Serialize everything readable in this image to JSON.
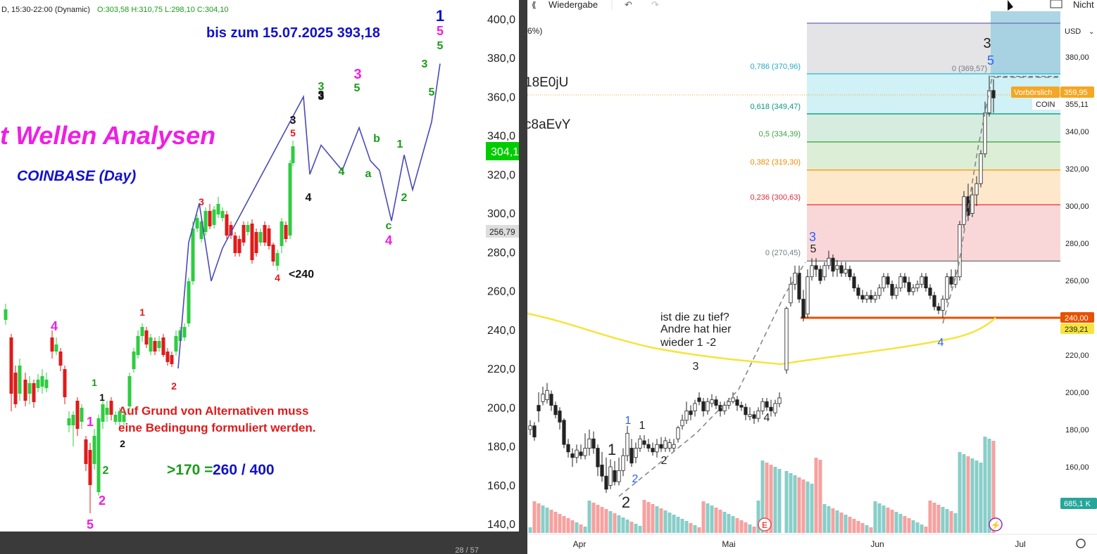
{
  "left": {
    "header": "D, 15:30-22:00 (Dynamic)",
    "ohlc": "O:303,58 H:310,75 L:298,10 C:304,10",
    "title": "t Wellen Analysen",
    "subtitle": "COINBASE (Day)",
    "target": "bis zum 15.07.2025 393,18",
    "note_line1": "Auf Grund von Alternativen muss",
    "note_line2": "eine Bedingung formuliert werden.",
    "cond_a": ">170 =",
    "cond_b": "260 / 400",
    "lt240": "<240",
    "y_ticks": [
      "400,0",
      "380,0",
      "360,0",
      "340,0",
      "320,0",
      "300,0",
      "280,0",
      "260,0",
      "240,0",
      "220,0",
      "200,0",
      "180,0",
      "160,0",
      "140,0"
    ],
    "price_badge": "304,1",
    "price_badge2": "256,79",
    "page": "28 / 57",
    "labels": [
      "1",
      "5",
      "5",
      "3",
      "5",
      "3",
      "5",
      "3",
      "4",
      "3",
      "5",
      "b",
      "1",
      "a",
      "4",
      "2",
      "c",
      "4",
      "3",
      "5",
      "4",
      "<240",
      "1",
      "4",
      "2",
      "1",
      "1",
      "2",
      "2",
      "5",
      "2"
    ]
  },
  "right": {
    "toolbar": {
      "replay": "Wiedergabe",
      "undo_icon": "undo-icon",
      "redo_icon": "redo-icon",
      "right_label": "Nicht"
    },
    "currency": "USD",
    "pct_fragment": "6%)",
    "id1": "18E0jU",
    "id2": "c8aEvY",
    "annotation": [
      "ist die zu tief?",
      "Andre hat hier",
      "wieder 1 -2"
    ],
    "badges": {
      "preclose": "Vorbörslich",
      "preclose_price": "359,95",
      "symbol": "COIN",
      "symbol_price": "355,11",
      "level1": "240,00",
      "level2": "239,21",
      "volume": "685,1 K"
    },
    "x_labels": [
      "Apr",
      "Mai",
      "Jun",
      "Jul"
    ],
    "colors": {
      "up": "#26a69a",
      "down": "#ef5350",
      "ma": "#f5e43c"
    }
  },
  "chart_data": [
    {
      "type": "candlestick",
      "title": "COINBASE (Day)",
      "ylim": [
        135,
        405
      ],
      "y_ticks": [
        140,
        160,
        180,
        200,
        220,
        240,
        260,
        280,
        300,
        320,
        340,
        360,
        380,
        400
      ],
      "wave_path": [
        [
          253,
          220
        ],
        [
          268,
          285
        ],
        [
          283,
          305
        ],
        [
          300,
          265
        ],
        [
          316,
          282
        ],
        [
          431,
          360
        ],
        [
          440,
          320
        ],
        [
          456,
          335
        ],
        [
          486,
          322
        ],
        [
          510,
          344
        ],
        [
          526,
          327
        ],
        [
          539,
          322
        ],
        [
          556,
          296
        ],
        [
          574,
          330
        ],
        [
          586,
          312
        ],
        [
          613,
          347
        ],
        [
          625,
          377
        ]
      ]
    },
    {
      "type": "candlestick",
      "title": "COIN",
      "x_labels": [
        "Apr",
        "Mai",
        "Jun",
        "Jul"
      ],
      "ylim": [
        137,
        400
      ],
      "y_ticks": [
        160,
        180,
        200,
        220,
        240,
        260,
        280,
        300,
        320,
        340,
        360,
        380
      ],
      "fibonacci": [
        {
          "ratio": "0,786",
          "value": 370.96,
          "color": "#26c6da"
        },
        {
          "ratio": "0,618",
          "value": 349.47,
          "color": "#089981"
        },
        {
          "ratio": "0,5",
          "value": 334.39,
          "color": "#4caf50"
        },
        {
          "ratio": "0,382",
          "value": 319.3,
          "color": "#ff9800"
        },
        {
          "ratio": "0,236",
          "value": 300.63,
          "color": "#f23645"
        },
        {
          "ratio": "0",
          "value": 270.45,
          "color": "#787b86"
        },
        {
          "ratio": "0",
          "value": 369.57,
          "color": "#787b86"
        }
      ],
      "levels": [
        {
          "label": "240,00",
          "value": 240.0
        },
        {
          "label": "239,21",
          "value": 239.21
        }
      ],
      "last_price": 355.11,
      "premarket": 359.95,
      "volume_last": "685,1 K"
    }
  ]
}
